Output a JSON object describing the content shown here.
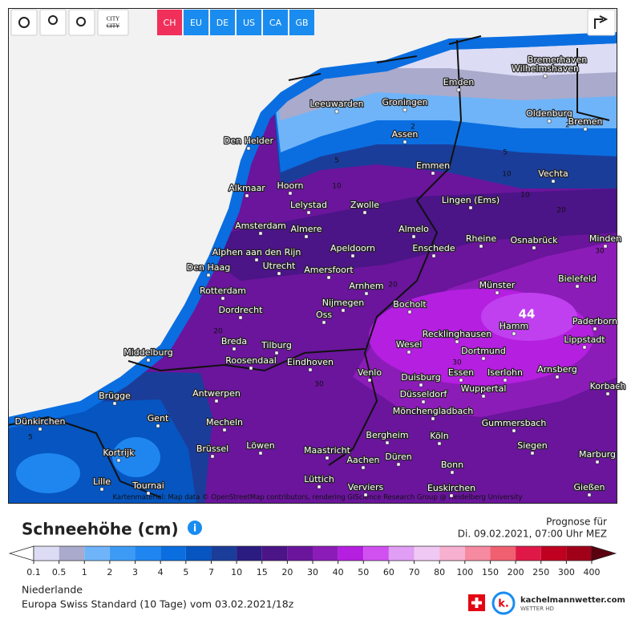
{
  "toolbar": {
    "city_label": "CITY",
    "regions": [
      "CH",
      "EU",
      "DE",
      "US",
      "CA",
      "GB"
    ]
  },
  "map": {
    "attribution": "Kartenmaterial: Map data © OpenStreetMap contributors, rendering GIScience Research Group @ Heidelberg University",
    "max_label": 44,
    "contour_labels": [
      2,
      5,
      10,
      10,
      20,
      20,
      30,
      30,
      30,
      5,
      2,
      20,
      5,
      10
    ],
    "cities": [
      "Bremerhaven",
      "Wilhelmshaven",
      "Emden",
      "Leeuwarden",
      "Groningen",
      "Oldenburg",
      "Bremen",
      "Den Helder",
      "Assen",
      "Emmen",
      "Vechta",
      "Alkmaar",
      "Hoorn",
      "Lingen (Ems)",
      "Lelystad",
      "Zwolle",
      "Amsterdam",
      "Almere",
      "Almelo",
      "Rheine",
      "Osnabrück",
      "Minden",
      "Alphen aan den Rijn",
      "Apeldoorn",
      "Enschede",
      "Den Haag",
      "Utrecht",
      "Amersfoort",
      "Bielefeld",
      "Rotterdam",
      "Arnhem",
      "Münster",
      "Nijmegen",
      "Bocholt",
      "Dordrecht",
      "Oss",
      "Paderborn",
      "Hamm",
      "Recklinghausen",
      "Lippstadt",
      "Breda",
      "Tilburg",
      "Wesel",
      "Dortmund",
      "Middelburg",
      "Roosendaal",
      "Eindhoven",
      "Venlo",
      "Duisburg",
      "Essen",
      "Iserlohn",
      "Arnsberg",
      "Brügge",
      "Antwerpen",
      "Düsseldorf",
      "Wuppertal",
      "Korbach",
      "Dünkirchen",
      "Gent",
      "Mecheln",
      "Mönchengladbach",
      "Gummersbach",
      "Bergheim",
      "Köln",
      "Kortrijk",
      "Brüssel",
      "Löwen",
      "Maastricht",
      "Siegen",
      "Marburg",
      "Aachen",
      "Düren",
      "Bonn",
      "Lille",
      "Tournai",
      "Lüttich",
      "Verviers",
      "Euskirchen",
      "Gießen"
    ]
  },
  "title": "Schneehöhe (cm)",
  "forecast": {
    "label": "Prognose für",
    "date": "Di. 09.02.2021, 07:00 Uhr MEZ"
  },
  "legend": {
    "levels": [
      0.1,
      0.5,
      1,
      2,
      3,
      4,
      5,
      7,
      10,
      15,
      20,
      30,
      40,
      50,
      60,
      70,
      80,
      100,
      150,
      200,
      250,
      300,
      400
    ],
    "colors": [
      "#dcdcf5",
      "#aaaacc",
      "#6fb4f8",
      "#3d9bf5",
      "#1f86f0",
      "#0a6ee0",
      "#0655c0",
      "#1b3d9a",
      "#2a1c80",
      "#4b1487",
      "#6a159c",
      "#8c1cb8",
      "#b51fe0",
      "#d050f0",
      "#e09ef4",
      "#f0c8f4",
      "#f8b0d0",
      "#f68aa0",
      "#f06070",
      "#e01848",
      "#c00020",
      "#a00018"
    ],
    "under_color": "#ffffff",
    "over_color": "#5a0010"
  },
  "footer": {
    "region": "Niederlande",
    "model": "Europa Swiss Standard (10 Tage) vom 03.02.2021/18z",
    "brand": "kachelmannwetter.com",
    "brand_sub": "WETTER HD"
  }
}
